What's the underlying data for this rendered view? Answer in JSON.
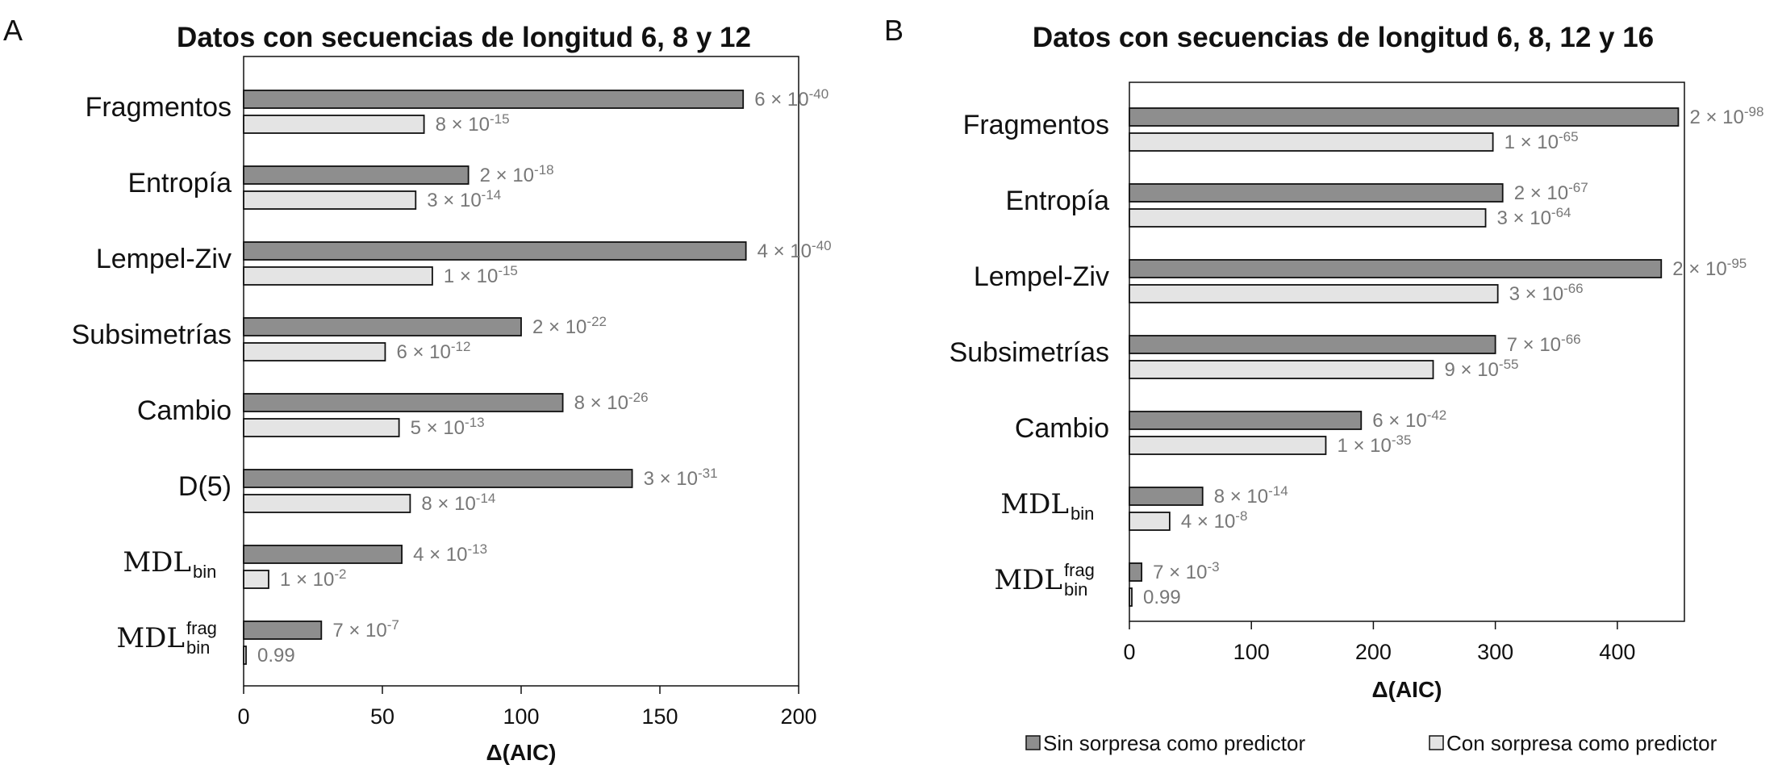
{
  "colors": {
    "series_sin": "#8e8e8e",
    "series_con": "#e4e4e4",
    "bar_stroke": "#111111",
    "pvalue_text": "#777777"
  },
  "legend": {
    "placement": "bottom",
    "items": [
      {
        "label": "Sin sorpresa como predictor",
        "color": "#8e8e8e"
      },
      {
        "label": "Con sorpresa como predictor",
        "color": "#e4e4e4"
      }
    ]
  },
  "chart_data": [
    {
      "panel": "A",
      "type": "bar",
      "orientation": "horizontal",
      "title": "Datos con secuencias de longitud 6, 8 y 12",
      "xlabel": "Δ(AIC)",
      "xlim": [
        0,
        200
      ],
      "xticks": [
        0,
        50,
        100,
        150,
        200
      ],
      "categories": [
        {
          "base": "Fragmentos"
        },
        {
          "base": "Entropía"
        },
        {
          "base": "Lempel-Ziv"
        },
        {
          "base": "Subsimetrías"
        },
        {
          "base": "Cambio"
        },
        {
          "base": "D(5)"
        },
        {
          "base": "MDL",
          "sub": "bin",
          "serif": true
        },
        {
          "base": "MDL",
          "sub": "bin",
          "sup": "frag",
          "serif": true
        }
      ],
      "series": [
        {
          "values": [
            180,
            81,
            181,
            100,
            115,
            140,
            57,
            28
          ],
          "pvalues": [
            {
              "m": "6 × 10",
              "e": "-40"
            },
            {
              "m": "2 × 10",
              "e": "-18"
            },
            {
              "m": "4 × 10",
              "e": "-40"
            },
            {
              "m": "2 × 10",
              "e": "-22"
            },
            {
              "m": "8 × 10",
              "e": "-26"
            },
            {
              "m": "3 × 10",
              "e": "-31"
            },
            {
              "m": "4 × 10",
              "e": "-13"
            },
            {
              "m": "7 × 10",
              "e": "-7"
            }
          ]
        },
        {
          "values": [
            65,
            62,
            68,
            51,
            56,
            60,
            9,
            0.5
          ],
          "pvalues": [
            {
              "m": "8 × 10",
              "e": "-15"
            },
            {
              "m": "3 × 10",
              "e": "-14"
            },
            {
              "m": "1 × 10",
              "e": "-15"
            },
            {
              "m": "6 × 10",
              "e": "-12"
            },
            {
              "m": "5 × 10",
              "e": "-13"
            },
            {
              "m": "8 × 10",
              "e": "-14"
            },
            {
              "m": "1 × 10",
              "e": "-2"
            },
            {
              "m": "0.99",
              "e": ""
            }
          ]
        }
      ]
    },
    {
      "panel": "B",
      "type": "bar",
      "orientation": "horizontal",
      "title": "Datos con secuencias de longitud 6, 8, 12 y 16",
      "xlabel": "Δ(AIC)",
      "xlim": [
        0,
        455
      ],
      "xticks": [
        0,
        100,
        200,
        300,
        400
      ],
      "categories": [
        {
          "base": "Fragmentos"
        },
        {
          "base": "Entropía"
        },
        {
          "base": "Lempel-Ziv"
        },
        {
          "base": "Subsimetrías"
        },
        {
          "base": "Cambio"
        },
        {
          "base": "MDL",
          "sub": "bin",
          "serif": true
        },
        {
          "base": "MDL",
          "sub": "bin",
          "sup": "frag",
          "serif": true
        }
      ],
      "series": [
        {
          "values": [
            450,
            306,
            436,
            300,
            190,
            60,
            10
          ],
          "pvalues": [
            {
              "m": "2 × 10",
              "e": "-98"
            },
            {
              "m": "2 × 10",
              "e": "-67"
            },
            {
              "m": "2 × 10",
              "e": "-95"
            },
            {
              "m": "7 × 10",
              "e": "-66"
            },
            {
              "m": "6 × 10",
              "e": "-42"
            },
            {
              "m": "8 × 10",
              "e": "-14"
            },
            {
              "m": "7 × 10",
              "e": "-3"
            }
          ]
        },
        {
          "values": [
            298,
            292,
            302,
            249,
            161,
            33,
            0.5
          ],
          "pvalues": [
            {
              "m": "1 × 10",
              "e": "-65"
            },
            {
              "m": "3 × 10",
              "e": "-64"
            },
            {
              "m": "3 × 10",
              "e": "-66"
            },
            {
              "m": "9 × 10",
              "e": "-55"
            },
            {
              "m": "1 × 10",
              "e": "-35"
            },
            {
              "m": "4 × 10",
              "e": "-8"
            },
            {
              "m": "0.99",
              "e": ""
            }
          ]
        }
      ]
    }
  ]
}
